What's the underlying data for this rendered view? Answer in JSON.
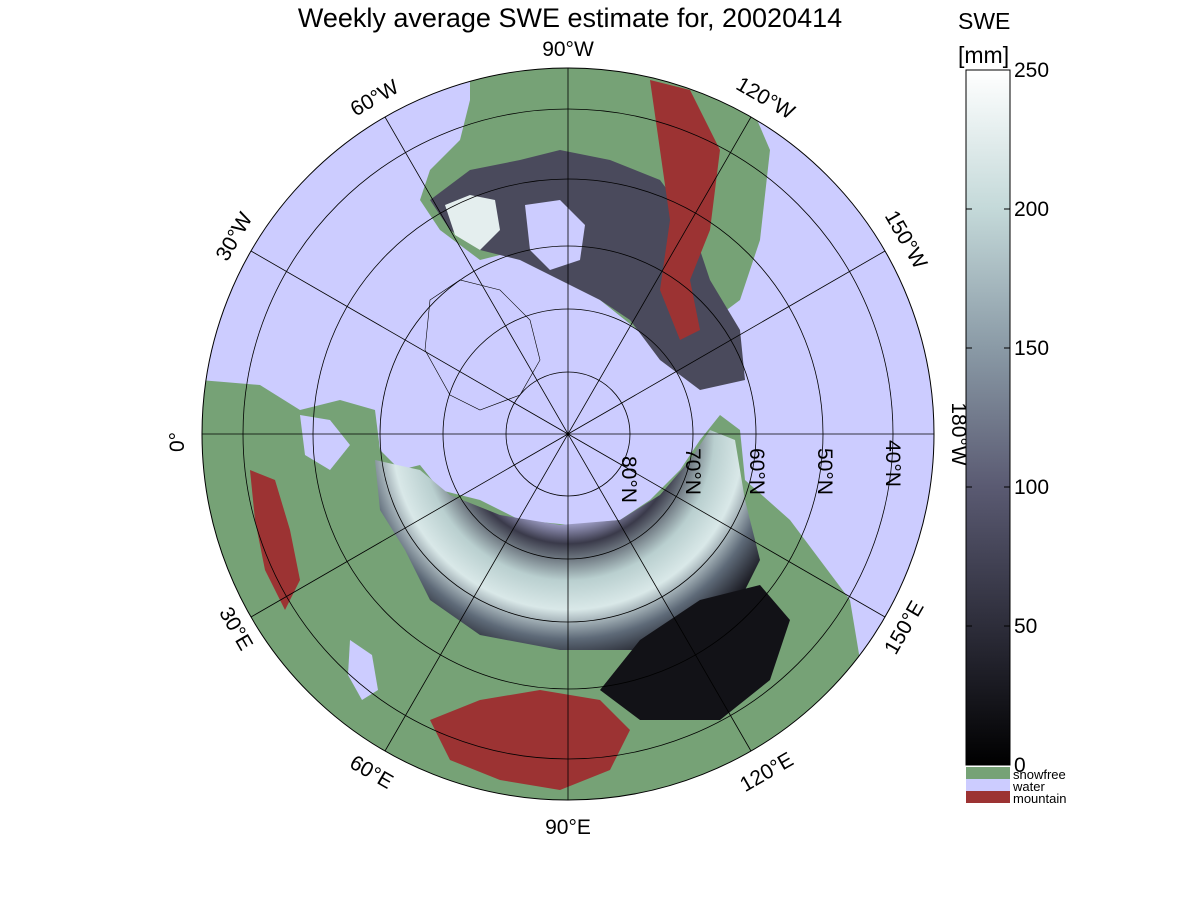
{
  "title": "Weekly average SWE estimate for, 20020414",
  "colorbar": {
    "title_line1": "SWE",
    "title_line2": "[mm]",
    "ticks": [
      "250",
      "200",
      "150",
      "100",
      "50",
      "0"
    ],
    "tick_values": [
      250,
      200,
      150,
      100,
      50,
      0
    ],
    "min": 0,
    "max": 250,
    "colormap": [
      "#000000",
      "#2d2d3a",
      "#5a5a72",
      "#8a9aa6",
      "#c4d9d9",
      "#ffffff"
    ]
  },
  "legend": [
    {
      "label": "snowfree",
      "color": "#76a276"
    },
    {
      "label": "water",
      "color": "#ccccff"
    },
    {
      "label": "mountain",
      "color": "#9c3333"
    }
  ],
  "map": {
    "projection": "north-polar stereographic",
    "ocean_color": "#ccccff",
    "snowfree_color": "#76a276",
    "mountain_color": "#9c3333",
    "longitude_labels": [
      "90°W",
      "120°W",
      "150°W",
      "180°W",
      "150°E",
      "120°E",
      "90°E",
      "60°E",
      "30°E",
      "0°",
      "30°W",
      "60°W"
    ],
    "latitude_labels": [
      "80°N",
      "70°N",
      "60°N",
      "50°N",
      "40°N"
    ]
  }
}
